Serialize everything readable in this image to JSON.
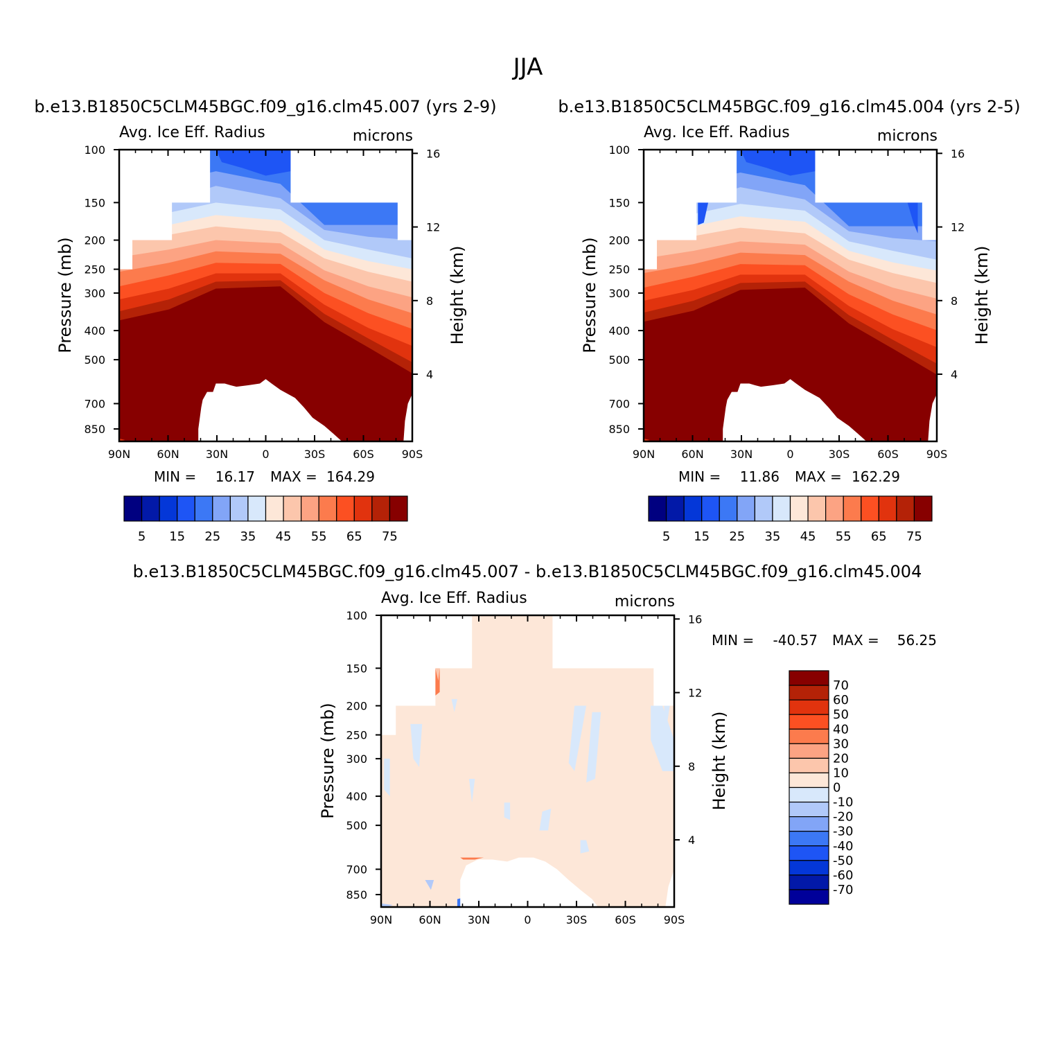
{
  "figure": {
    "title": "JJA"
  },
  "colors": {
    "levels_abs": [
      "#000080",
      "#0219a8",
      "#0437d8",
      "#1e55f5",
      "#3c78f5",
      "#82a5f7",
      "#b1c9f9",
      "#d8e8fb",
      "#fde7d8",
      "#fcc6ac",
      "#fca383",
      "#fc7b4d",
      "#fc5022",
      "#e1330e",
      "#b42207",
      "#870000"
    ],
    "levels_diff": [
      "#00009a",
      "#0219a8",
      "#0437d8",
      "#1e55f5",
      "#3c78f5",
      "#82a5f7",
      "#b1c9f9",
      "#d8e8fb",
      "#fde7d8",
      "#fcc6ac",
      "#fca383",
      "#fc7b4d",
      "#fc5022",
      "#e1330e",
      "#b42207",
      "#870000"
    ]
  },
  "chart_data": [
    {
      "type": "heatmap",
      "title": "b.e13.B1850C5CLM45BGC.f09_g16.clm45.007 (yrs 2-9)",
      "left_label": "Avg. Ice Eff. Radius",
      "right_label": "microns",
      "ylabel": "Pressure (mb)",
      "ylabel_right": "Height (km)",
      "x_ticks": [
        "90N",
        "60N",
        "30N",
        "0",
        "30S",
        "60S",
        "90S"
      ],
      "y_ticks": [
        "100",
        "150",
        "200",
        "250",
        "300",
        "400",
        "500",
        "700",
        "850"
      ],
      "y_ticks_right": [
        "16",
        "12",
        "8",
        "4"
      ],
      "stats": {
        "min_label": "MIN =",
        "min": "16.17",
        "max_label": "MAX =",
        "max": "164.29"
      },
      "colorbar_labels": [
        "5",
        "15",
        "25",
        "35",
        "45",
        "55",
        "65",
        "75"
      ],
      "levels": [
        0,
        5,
        10,
        15,
        20,
        25,
        30,
        35,
        40,
        45,
        50,
        55,
        60,
        65,
        70,
        75
      ]
    },
    {
      "type": "heatmap",
      "title": "b.e13.B1850C5CLM45BGC.f09_g16.clm45.004 (yrs 2-5)",
      "left_label": "Avg. Ice Eff. Radius",
      "right_label": "microns",
      "ylabel": "Pressure (mb)",
      "ylabel_right": "Height (km)",
      "x_ticks": [
        "90N",
        "60N",
        "30N",
        "0",
        "30S",
        "60S",
        "90S"
      ],
      "y_ticks": [
        "100",
        "150",
        "200",
        "250",
        "300",
        "400",
        "500",
        "700",
        "850"
      ],
      "y_ticks_right": [
        "16",
        "12",
        "8",
        "4"
      ],
      "stats": {
        "min_label": "MIN =",
        "min": "11.86",
        "max_label": "MAX =",
        "max": "162.29"
      },
      "colorbar_labels": [
        "5",
        "15",
        "25",
        "35",
        "45",
        "55",
        "65",
        "75"
      ],
      "levels": [
        0,
        5,
        10,
        15,
        20,
        25,
        30,
        35,
        40,
        45,
        50,
        55,
        60,
        65,
        70,
        75
      ]
    },
    {
      "type": "heatmap",
      "title": "b.e13.B1850C5CLM45BGC.f09_g16.clm45.007 - b.e13.B1850C5CLM45BGC.f09_g16.clm45.004",
      "left_label": "Avg. Ice Eff. Radius",
      "right_label": "microns",
      "ylabel": "Pressure (mb)",
      "ylabel_right": "Height (km)",
      "x_ticks": [
        "90N",
        "60N",
        "30N",
        "0",
        "30S",
        "60S",
        "90S"
      ],
      "y_ticks": [
        "100",
        "150",
        "200",
        "250",
        "300",
        "400",
        "500",
        "700",
        "850"
      ],
      "y_ticks_right": [
        "16",
        "12",
        "8",
        "4"
      ],
      "stats": {
        "min_label": "MIN =",
        "min": "-40.57",
        "max_label": "MAX =",
        "max": "56.25"
      },
      "colorbar_labels": [
        "70",
        "60",
        "50",
        "40",
        "30",
        "20",
        "10",
        "0",
        "-10",
        "-20",
        "-30",
        "-40",
        "-50",
        "-60",
        "-70"
      ],
      "levels": [
        -70,
        -60,
        -50,
        -40,
        -30,
        -20,
        -10,
        0,
        10,
        20,
        30,
        40,
        50,
        60,
        70
      ]
    }
  ]
}
